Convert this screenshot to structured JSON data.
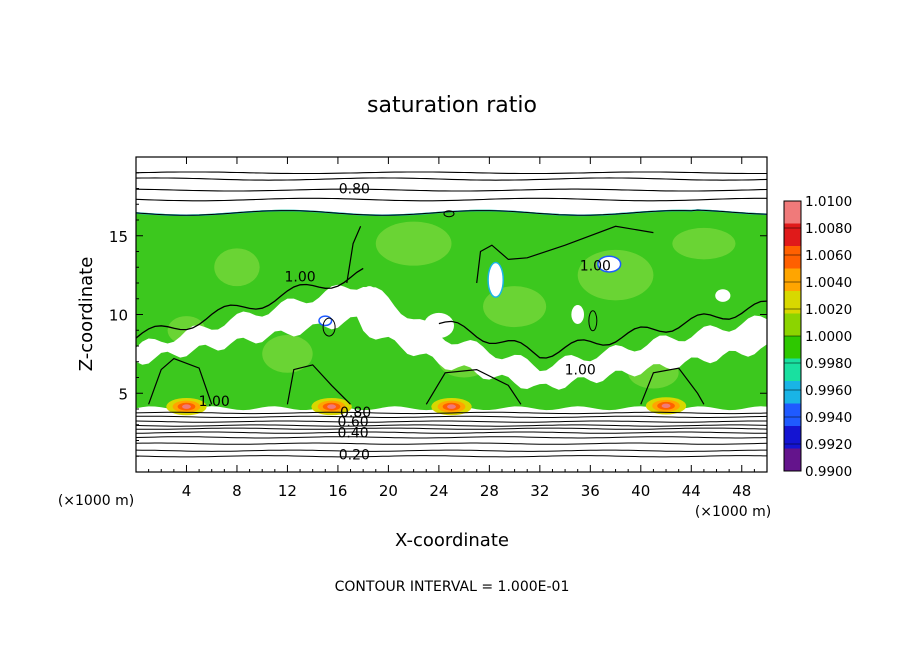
{
  "chart_data": {
    "type": "heatmap",
    "title": "saturation ratio",
    "xlabel": "X-coordinate",
    "ylabel": "Z-coordinate",
    "x_unit": "(×1000 m)",
    "z_unit": "(×1000 m)",
    "xlim": [
      0,
      50
    ],
    "ylim": [
      0,
      20
    ],
    "x_ticks": [
      4,
      8,
      12,
      16,
      20,
      24,
      28,
      32,
      36,
      40,
      44,
      48
    ],
    "y_ticks": [
      5,
      10,
      15
    ],
    "footer": "CONTOUR INTERVAL = 1.000E-01",
    "colorbar": {
      "min": 0.99,
      "max": 1.01,
      "labels": [
        "1.0100",
        "1.0080",
        "1.0060",
        "1.0040",
        "1.0020",
        "1.0000",
        "0.9980",
        "0.9960",
        "0.9940",
        "0.9920",
        "0.9900"
      ],
      "colors": [
        "#f07a7a",
        "#e01a1a",
        "#ff6000",
        "#ffa500",
        "#d8d800",
        "#8cd400",
        "#2ec800",
        "#19e0a0",
        "#19b4e6",
        "#1f5aff",
        "#1414d2",
        "#64148c"
      ]
    },
    "contour_labels": [
      {
        "text": "0.80",
        "x": 17.3,
        "z": 18.0
      },
      {
        "text": "1.00",
        "x": 13.0,
        "z": 12.4
      },
      {
        "text": "1.00",
        "x": 36.4,
        "z": 13.1
      },
      {
        "text": "1.00",
        "x": 35.2,
        "z": 6.5
      },
      {
        "text": "1.00",
        "x": 6.2,
        "z": 4.5
      },
      {
        "text": "0.80",
        "x": 17.4,
        "z": 3.8
      },
      {
        "text": "0.60",
        "x": 17.2,
        "z": 3.2
      },
      {
        "text": "0.40",
        "x": 17.2,
        "z": 2.5
      },
      {
        "text": "0.20",
        "x": 17.3,
        "z": 1.1
      }
    ]
  }
}
